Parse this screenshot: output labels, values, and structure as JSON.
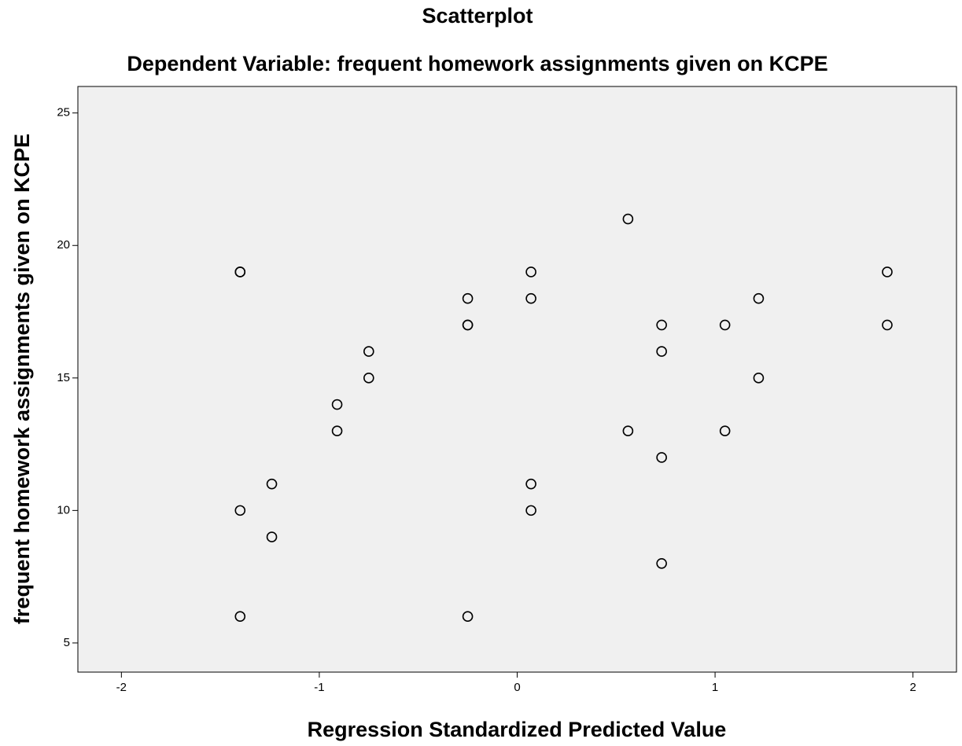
{
  "chart_data": {
    "type": "scatter",
    "title": "Scatterplot",
    "subtitle": "Dependent Variable: frequent homework assignments given on KCPE",
    "x_label": "Regression Standardized Predicted Value",
    "y_label": "frequent homework assignments given on KCPE",
    "x": [
      -1.4,
      -1.4,
      -1.4,
      -1.4,
      -1.24,
      -1.24,
      -0.91,
      -0.91,
      -0.75,
      -0.75,
      -0.25,
      -0.25,
      -0.25,
      -0.25,
      0.07,
      0.07,
      0.07,
      0.07,
      0.56,
      0.56,
      0.73,
      0.73,
      0.73,
      0.73,
      1.05,
      1.05,
      1.22,
      1.22,
      1.87,
      1.87
    ],
    "values": [
      19,
      19,
      10,
      6,
      11,
      9,
      14,
      13,
      16,
      15,
      18,
      17,
      17,
      6,
      19,
      18,
      11,
      10,
      21,
      13,
      17,
      16,
      12,
      8,
      17,
      13,
      18,
      15,
      19,
      17
    ],
    "xlim": [
      -2.22,
      2.22
    ],
    "xticks": [
      -2,
      -1,
      0,
      1,
      2
    ],
    "ylim": [
      3.9,
      26.0
    ],
    "yticks": [
      5,
      10,
      15,
      20,
      25
    ],
    "color": "#000000",
    "background": "#f0f0f0"
  }
}
